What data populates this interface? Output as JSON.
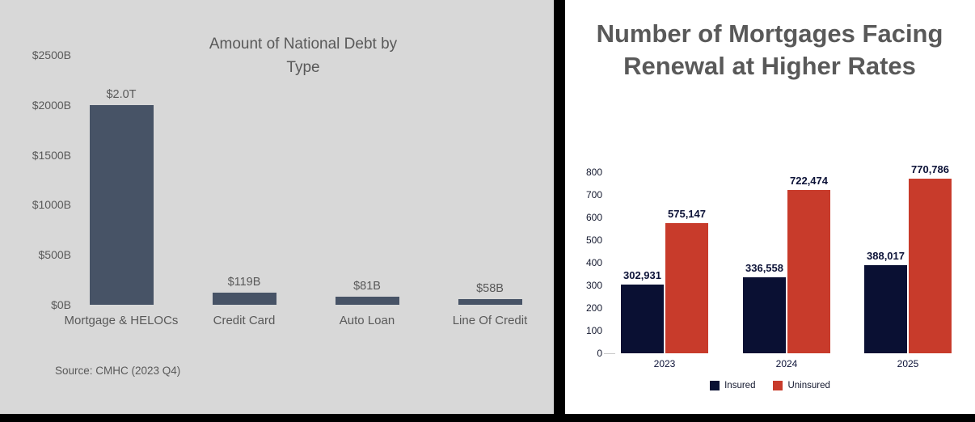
{
  "chart_data": [
    {
      "type": "bar",
      "title": "Amount of National Debt by Type",
      "source": "Source: CMHC (2023 Q4)",
      "categories": [
        "Mortgage & HELOCs",
        "Credit Card",
        "Auto Loan",
        "Line Of Credit"
      ],
      "values": [
        2000,
        119,
        81,
        58
      ],
      "value_labels": [
        "$2.0T",
        "$119B",
        "$81B",
        "$58B"
      ],
      "y_tick_labels": [
        "$2500B",
        "$2000B",
        "$1500B",
        "$1000B",
        "$500B",
        "$0B"
      ],
      "y_tick_values": [
        2500,
        2000,
        1500,
        1000,
        500,
        0
      ],
      "ylim": [
        0,
        2500
      ],
      "units": "billions CAD",
      "grid": false,
      "legend": null,
      "bar_color": "#475366",
      "background_color": "#d8d8d8",
      "text_color": "#595959"
    },
    {
      "type": "bar",
      "title": "Number of Mortgages Facing Renewal at Higher Rates",
      "categories": [
        "2023",
        "2024",
        "2025"
      ],
      "series": [
        {
          "name": "Insured",
          "color": "#0a1033",
          "values": [
            302931,
            336558,
            388017
          ],
          "value_labels": [
            "302,931",
            "336,558",
            "388,017"
          ]
        },
        {
          "name": "Uninsured",
          "color": "#c83b2b",
          "values": [
            575147,
            722474,
            770786
          ],
          "value_labels": [
            "575,147",
            "722,474",
            "770,786"
          ]
        }
      ],
      "y_tick_values": [
        800,
        700,
        600,
        500,
        400,
        300,
        200,
        100,
        0
      ],
      "ylim": [
        0,
        800
      ],
      "y_units": "thousands",
      "grid": false,
      "legend_position": "bottom",
      "background_color": "#ffffff",
      "title_color": "#595959",
      "label_color": "#0d1338"
    }
  ]
}
